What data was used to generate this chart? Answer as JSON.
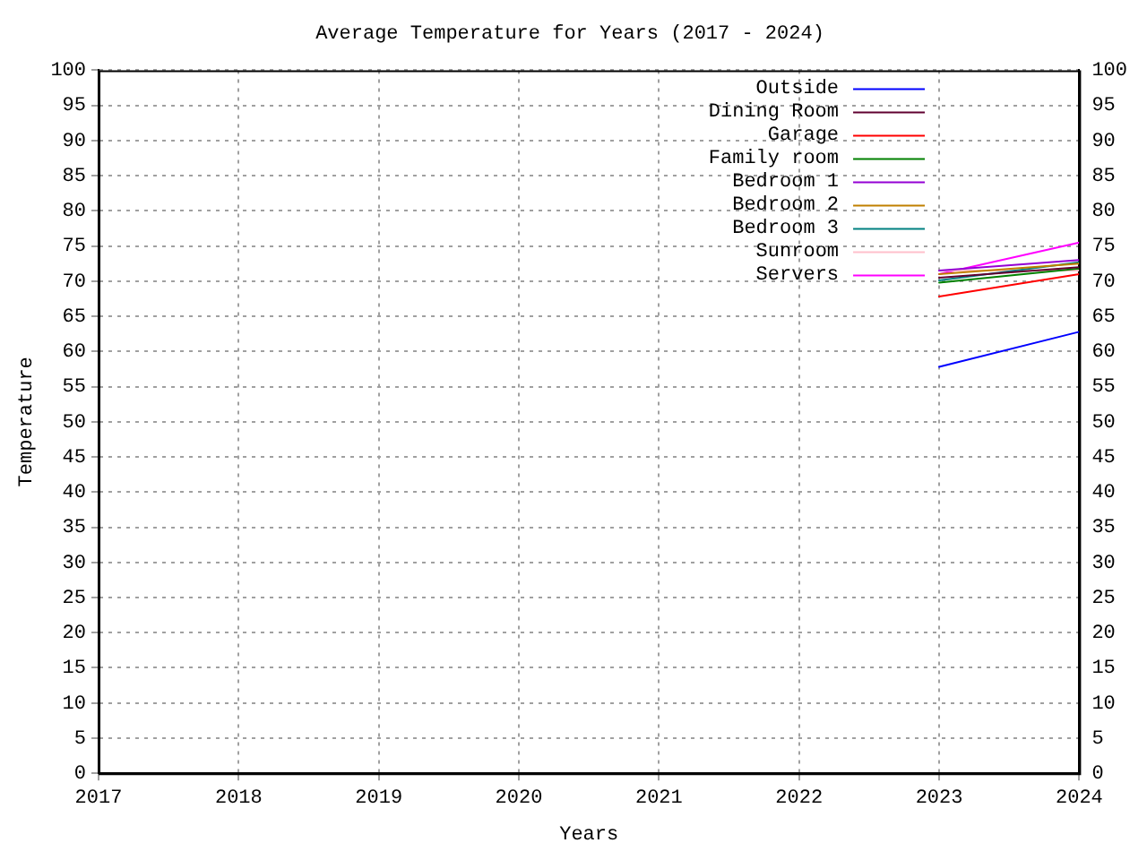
{
  "chart_data": {
    "type": "line",
    "title": "Average Temperature for Years (2017 - 2024)",
    "xlabel": "Years",
    "ylabel": "Temperature",
    "xlim": [
      2017,
      2024
    ],
    "xticks": [
      2017,
      2018,
      2019,
      2020,
      2021,
      2022,
      2023,
      2024
    ],
    "ylim": [
      0,
      100
    ],
    "yticks": [
      0,
      5,
      10,
      15,
      20,
      25,
      30,
      35,
      40,
      45,
      50,
      55,
      60,
      65,
      70,
      75,
      80,
      85,
      90,
      95,
      100
    ],
    "y2lim": [
      0,
      100
    ],
    "y2ticks": [
      0,
      5,
      10,
      15,
      20,
      25,
      30,
      35,
      40,
      45,
      50,
      55,
      60,
      65,
      70,
      75,
      80,
      85,
      90,
      95,
      100
    ],
    "grid": true,
    "legend": "top right",
    "marker": "none",
    "line_style": "solid",
    "x": [
      2023,
      2024
    ],
    "series": [
      {
        "name": "Outside",
        "color": "#0000ff",
        "values": [
          57.8,
          62.8
        ]
      },
      {
        "name": "Dining Room",
        "color": "#600030",
        "values": [
          70.5,
          72
        ]
      },
      {
        "name": "Garage",
        "color": "#ff0000",
        "values": [
          67.8,
          71
        ]
      },
      {
        "name": "Family room",
        "color": "#008000",
        "values": [
          69.8,
          71.8
        ]
      },
      {
        "name": "Bedroom 1",
        "color": "#9400d3",
        "values": [
          71.5,
          73
        ]
      },
      {
        "name": "Bedroom 2",
        "color": "#c08000",
        "values": [
          71,
          72.5
        ]
      },
      {
        "name": "Bedroom 3",
        "color": "#008080",
        "values": [
          70.1,
          72.7
        ]
      },
      {
        "name": "Sunroom",
        "color": "#ffc0cb",
        "values": [
          71.5,
          71.5
        ]
      },
      {
        "name": "Servers",
        "color": "#ff00ff",
        "values": [
          71,
          75.5
        ]
      }
    ]
  }
}
